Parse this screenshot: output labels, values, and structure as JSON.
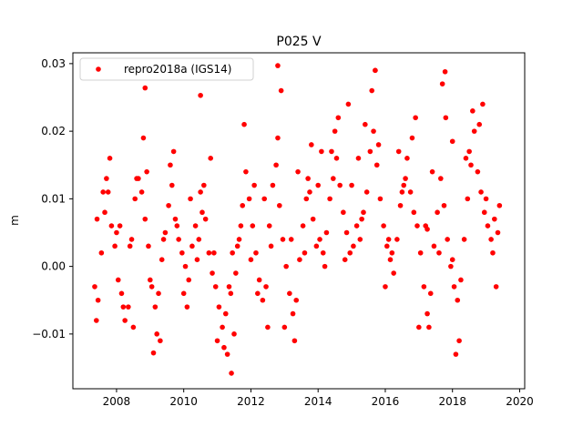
{
  "chart_data": {
    "type": "scatter",
    "title": "P025 V",
    "xlabel": "",
    "ylabel": "m",
    "xlim": [
      2006.7,
      2020.15
    ],
    "ylim": [
      -0.0181,
      0.0316
    ],
    "xticks": [
      2008,
      2010,
      2012,
      2014,
      2016,
      2018,
      2020
    ],
    "yticks": [
      -0.01,
      0.0,
      0.01,
      0.02,
      0.03
    ],
    "ytick_labels": [
      "−0.01",
      "0.00",
      "0.01",
      "0.02",
      "0.03"
    ],
    "grid": false,
    "legend_position": "top-left",
    "series": [
      {
        "name": "repro2018a (IGS14)",
        "color": "#ff0000",
        "marker": "circle",
        "x": [
          2007.35,
          2007.45,
          2007.55,
          2007.65,
          2007.75,
          2007.85,
          2007.95,
          2008.05,
          2008.15,
          2008.25,
          2008.35,
          2008.45,
          2008.55,
          2008.65,
          2008.75,
          2008.85,
          2008.95,
          2009.05,
          2009.15,
          2009.25,
          2009.35,
          2009.45,
          2009.55,
          2009.65,
          2009.75,
          2009.85,
          2009.95,
          2010.05,
          2010.15,
          2010.25,
          2010.35,
          2010.45,
          2010.55,
          2010.65,
          2010.75,
          2010.85,
          2010.95,
          2011.05,
          2011.15,
          2011.25,
          2011.35,
          2011.45,
          2011.55,
          2011.65,
          2011.75,
          2011.85,
          2011.95,
          2012.05,
          2012.15,
          2012.25,
          2012.35,
          2012.45,
          2012.55,
          2012.65,
          2012.75,
          2012.85,
          2012.95,
          2013.05,
          2013.15,
          2013.25,
          2013.35,
          2013.45,
          2013.55,
          2013.65,
          2013.75,
          2013.85,
          2013.95,
          2014.05,
          2014.15,
          2014.25,
          2014.35,
          2014.45,
          2014.55,
          2014.65,
          2014.75,
          2014.85,
          2014.95,
          2015.05,
          2015.15,
          2015.25,
          2015.35,
          2015.45,
          2015.55,
          2015.65,
          2015.75,
          2015.85,
          2015.95,
          2016.05,
          2016.15,
          2016.25,
          2016.35,
          2016.45,
          2016.55,
          2016.65,
          2016.75,
          2016.85,
          2016.95,
          2017.05,
          2017.15,
          2017.25,
          2017.35,
          2017.45,
          2017.55,
          2017.65,
          2017.75,
          2017.85,
          2017.95,
          2018.05,
          2018.15,
          2018.25,
          2018.35,
          2018.45,
          2018.55,
          2018.65,
          2018.75,
          2018.85,
          2018.95,
          2019.05,
          2019.15,
          2019.25,
          2019.35,
          2007.4,
          2007.6,
          2007.8,
          2008.0,
          2008.2,
          2008.4,
          2008.6,
          2008.8,
          2009.0,
          2009.2,
          2009.4,
          2009.6,
          2009.8,
          2010.0,
          2010.2,
          2010.4,
          2010.6,
          2010.8,
          2011.0,
          2011.2,
          2011.4,
          2011.6,
          2011.8,
          2012.0,
          2012.2,
          2012.4,
          2012.6,
          2012.8,
          2013.0,
          2013.2,
          2013.4,
          2013.6,
          2013.8,
          2014.0,
          2014.2,
          2014.4,
          2014.6,
          2014.8,
          2015.0,
          2015.2,
          2015.4,
          2015.6,
          2015.8,
          2016.0,
          2016.2,
          2016.4,
          2016.6,
          2016.8,
          2017.0,
          2017.2,
          2017.4,
          2017.6,
          2017.8,
          2018.0,
          2018.2,
          2018.4,
          2018.6,
          2018.8,
          2019.0,
          2019.2,
          2019.4,
          2007.42,
          2007.7,
          2008.1,
          2008.5,
          2008.9,
          2009.3,
          2009.7,
          2010.1,
          2010.5,
          2010.9,
          2011.3,
          2011.5,
          2011.7,
          2012.1,
          2012.5,
          2012.9,
          2013.3,
          2013.7,
          2014.1,
          2014.5,
          2014.9,
          2015.3,
          2015.7,
          2016.1,
          2016.5,
          2016.9,
          2017.3,
          2017.7,
          2018.1,
          2018.5,
          2018.9,
          2019.3,
          2012.8,
          2010.5,
          2008.85,
          2011.42,
          2015.7,
          2017.78,
          2018.0,
          2009.1,
          2017.25
        ],
        "y": [
          -0.003,
          -0.005,
          0.002,
          0.008,
          0.011,
          0.006,
          0.003,
          -0.002,
          -0.004,
          -0.008,
          -0.006,
          0.004,
          0.01,
          0.013,
          0.011,
          0.007,
          0.003,
          -0.003,
          -0.006,
          -0.004,
          0.001,
          0.005,
          0.009,
          0.012,
          0.007,
          0.004,
          0.002,
          0.0,
          -0.002,
          0.003,
          0.006,
          0.004,
          0.008,
          0.007,
          0.002,
          -0.001,
          -0.003,
          -0.006,
          -0.009,
          -0.007,
          -0.003,
          0.002,
          -0.001,
          0.004,
          0.009,
          0.014,
          0.01,
          0.006,
          0.002,
          -0.002,
          -0.005,
          -0.003,
          0.006,
          0.012,
          0.015,
          0.009,
          0.004,
          0.0,
          -0.004,
          -0.007,
          -0.005,
          0.001,
          0.006,
          0.01,
          0.011,
          0.007,
          0.003,
          0.004,
          0.002,
          0.005,
          0.01,
          0.013,
          0.016,
          0.012,
          0.008,
          0.005,
          0.002,
          0.003,
          0.006,
          0.004,
          0.008,
          0.011,
          0.017,
          0.02,
          0.015,
          0.01,
          0.006,
          0.003,
          0.001,
          -0.001,
          0.004,
          0.009,
          0.012,
          0.016,
          0.011,
          0.008,
          0.006,
          0.002,
          -0.003,
          -0.007,
          -0.004,
          0.003,
          0.008,
          0.013,
          0.009,
          0.004,
          0.0,
          -0.003,
          -0.005,
          -0.002,
          0.004,
          0.01,
          0.015,
          0.02,
          0.014,
          0.011,
          0.008,
          0.006,
          0.004,
          0.007,
          0.005,
          -0.008,
          0.011,
          0.016,
          0.005,
          -0.006,
          0.003,
          0.013,
          0.019,
          -0.002,
          -0.01,
          0.004,
          0.015,
          0.006,
          -0.004,
          0.01,
          0.001,
          0.012,
          0.016,
          -0.011,
          -0.012,
          -0.004,
          0.003,
          0.021,
          0.001,
          -0.004,
          0.01,
          0.003,
          0.019,
          -0.009,
          0.004,
          0.014,
          0.002,
          0.018,
          0.012,
          0.0,
          0.017,
          0.022,
          0.001,
          0.012,
          0.016,
          0.021,
          0.026,
          0.018,
          -0.003,
          0.002,
          0.017,
          0.013,
          0.019,
          -0.009,
          0.006,
          0.014,
          0.002,
          0.022,
          0.001,
          -0.011,
          0.016,
          0.023,
          0.021,
          0.01,
          0.002,
          0.009,
          0.007,
          0.013,
          0.006,
          -0.009,
          0.014,
          -0.011,
          0.017,
          -0.006,
          0.011,
          0.002,
          -0.013,
          -0.01,
          0.006,
          0.012,
          -0.009,
          0.026,
          -0.011,
          0.013,
          0.017,
          0.02,
          0.024,
          0.007,
          0.029,
          0.004,
          0.011,
          0.022,
          -0.009,
          0.027,
          -0.013,
          0.017,
          0.024,
          -0.003,
          0.0297,
          0.0253,
          0.0264,
          -0.0158,
          0.029,
          0.0288,
          0.0185,
          -0.0128,
          0.0055
        ]
      }
    ]
  }
}
